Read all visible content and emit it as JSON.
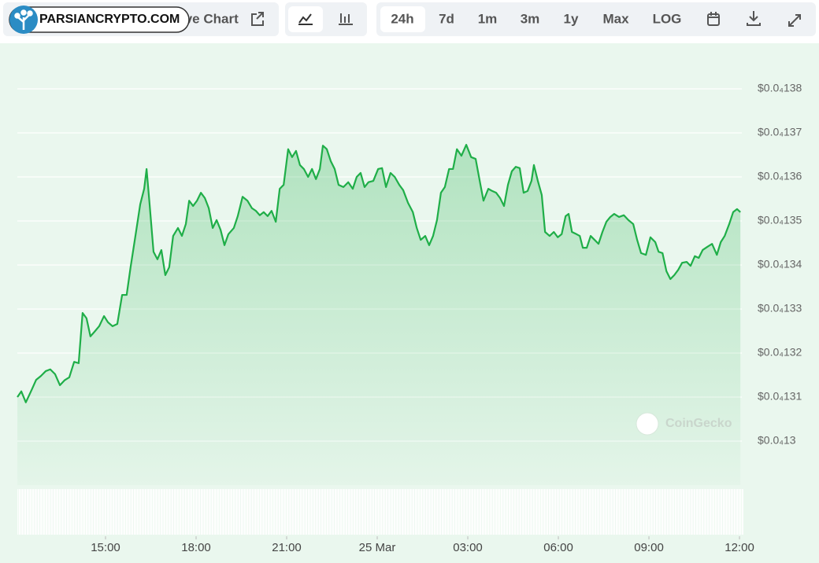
{
  "toolbar": {
    "brand": "PARSIANCRYPTO.COM",
    "live_chart": "ive Chart",
    "ranges": [
      "24h",
      "7d",
      "1m",
      "3m",
      "1y",
      "Max",
      "LOG"
    ]
  },
  "chart_data": {
    "type": "line",
    "watermark": "CoinGecko",
    "x": [
      12.08,
      12.21,
      12.36,
      12.55,
      12.7,
      12.86,
      13.02,
      13.17,
      13.33,
      13.49,
      13.64,
      13.8,
      13.96,
      14.11,
      14.24,
      14.37,
      14.5,
      14.63,
      14.79,
      14.95,
      15.08,
      15.23,
      15.39,
      15.55,
      15.7,
      15.83,
      15.99,
      16.15,
      16.28,
      16.36,
      16.46,
      16.59,
      16.72,
      16.85,
      16.98,
      17.11,
      17.24,
      17.4,
      17.53,
      17.66,
      17.77,
      17.9,
      18.03,
      18.16,
      18.29,
      18.42,
      18.55,
      18.68,
      18.81,
      18.94,
      19.07,
      19.25,
      19.38,
      19.54,
      19.7,
      19.85,
      19.98,
      20.11,
      20.24,
      20.37,
      20.5,
      20.64,
      20.77,
      20.9,
      21.05,
      21.18,
      21.31,
      21.44,
      21.57,
      21.71,
      21.84,
      21.97,
      22.1,
      22.2,
      22.33,
      22.46,
      22.59,
      22.72,
      22.88,
      23.04,
      23.19,
      23.32,
      23.45,
      23.58,
      23.71,
      23.87,
      24.03,
      24.16,
      24.29,
      24.44,
      24.58,
      24.73,
      24.86,
      25.02,
      25.18,
      25.31,
      25.44,
      25.59,
      25.72,
      25.85,
      25.98,
      26.11,
      26.24,
      26.38,
      26.51,
      26.64,
      26.79,
      26.95,
      27.11,
      27.26,
      27.42,
      27.52,
      27.68,
      27.81,
      27.94,
      28.07,
      28.2,
      28.33,
      28.46,
      28.59,
      28.72,
      28.85,
      28.98,
      29.11,
      29.19,
      29.32,
      29.45,
      29.56,
      29.71,
      29.85,
      29.98,
      30.11,
      30.24,
      30.34,
      30.45,
      30.6,
      30.71,
      30.81,
      30.94,
      31.07,
      31.2,
      31.33,
      31.46,
      31.59,
      31.72,
      31.85,
      32.01,
      32.17,
      32.32,
      32.48,
      32.61,
      32.74,
      32.9,
      33.05,
      33.21,
      33.32,
      33.45,
      33.58,
      33.71,
      33.84,
      33.97,
      34.1,
      34.25,
      34.38,
      34.52,
      34.65,
      34.78,
      34.93,
      35.09,
      35.25,
      35.38,
      35.51,
      35.66,
      35.79,
      35.92,
      36.03
    ],
    "series": [
      {
        "color": "#1fae48",
        "values": [
          1.31e-05,
          1.3113e-05,
          1.3088e-05,
          1.3116e-05,
          1.3139e-05,
          1.3148e-05,
          1.3159e-05,
          1.3163e-05,
          1.3152e-05,
          1.3127e-05,
          1.3138e-05,
          1.3145e-05,
          1.318e-05,
          1.3177e-05,
          1.3291e-05,
          1.3279e-05,
          1.3238e-05,
          1.3248e-05,
          1.3261e-05,
          1.3284e-05,
          1.327e-05,
          1.3261e-05,
          1.3266e-05,
          1.3332e-05,
          1.3332e-05,
          1.3395e-05,
          1.3466e-05,
          1.3538e-05,
          1.3573e-05,
          1.3618e-05,
          1.3538e-05,
          1.343e-05,
          1.3413e-05,
          1.3434e-05,
          1.3377e-05,
          1.3395e-05,
          1.3466e-05,
          1.3484e-05,
          1.3466e-05,
          1.3493e-05,
          1.3546e-05,
          1.3534e-05,
          1.3546e-05,
          1.3564e-05,
          1.3552e-05,
          1.3529e-05,
          1.3484e-05,
          1.3502e-05,
          1.348e-05,
          1.3445e-05,
          1.347e-05,
          1.3484e-05,
          1.3511e-05,
          1.3555e-05,
          1.3546e-05,
          1.3529e-05,
          1.3523e-05,
          1.3513e-05,
          1.352e-05,
          1.3511e-05,
          1.3523e-05,
          1.3498e-05,
          1.3573e-05,
          1.3582e-05,
          1.3663e-05,
          1.3645e-05,
          1.3659e-05,
          1.3627e-05,
          1.3618e-05,
          1.36e-05,
          1.3618e-05,
          1.3595e-05,
          1.3618e-05,
          1.3671e-05,
          1.3663e-05,
          1.3636e-05,
          1.3618e-05,
          1.3582e-05,
          1.3577e-05,
          1.3588e-05,
          1.3573e-05,
          1.36e-05,
          1.3609e-05,
          1.3577e-05,
          1.3588e-05,
          1.3591e-05,
          1.3618e-05,
          1.362e-05,
          1.3577e-05,
          1.3609e-05,
          1.36e-05,
          1.3582e-05,
          1.357e-05,
          1.3541e-05,
          1.352e-05,
          1.3484e-05,
          1.3457e-05,
          1.3466e-05,
          1.3445e-05,
          1.3466e-05,
          1.3502e-05,
          1.3564e-05,
          1.3577e-05,
          1.3618e-05,
          1.3618e-05,
          1.3663e-05,
          1.3648e-05,
          1.3673e-05,
          1.3645e-05,
          1.3641e-05,
          1.3582e-05,
          1.3546e-05,
          1.3573e-05,
          1.3568e-05,
          1.3564e-05,
          1.3552e-05,
          1.3534e-05,
          1.3582e-05,
          1.3613e-05,
          1.3623e-05,
          1.362e-05,
          1.3564e-05,
          1.3568e-05,
          1.3591e-05,
          1.3627e-05,
          1.3591e-05,
          1.3559e-05,
          1.3475e-05,
          1.3466e-05,
          1.3475e-05,
          1.3463e-05,
          1.347e-05,
          1.3511e-05,
          1.3516e-05,
          1.3475e-05,
          1.347e-05,
          1.3466e-05,
          1.3439e-05,
          1.3439e-05,
          1.3466e-05,
          1.3457e-05,
          1.3448e-05,
          1.3475e-05,
          1.3498e-05,
          1.3509e-05,
          1.3516e-05,
          1.3509e-05,
          1.3513e-05,
          1.3502e-05,
          1.3493e-05,
          1.3457e-05,
          1.3427e-05,
          1.3423e-05,
          1.3463e-05,
          1.3452e-05,
          1.343e-05,
          1.3427e-05,
          1.3386e-05,
          1.3368e-05,
          1.3377e-05,
          1.3389e-05,
          1.3405e-05,
          1.3407e-05,
          1.3398e-05,
          1.342e-05,
          1.3416e-05,
          1.3434e-05,
          1.3441e-05,
          1.3448e-05,
          1.3423e-05,
          1.3452e-05,
          1.3466e-05,
          1.3493e-05,
          1.352e-05,
          1.3527e-05,
          1.352e-05
        ]
      }
    ],
    "xlim": [
      12,
      36.2
    ],
    "xticks": [
      {
        "value": 15,
        "label": "15:00"
      },
      {
        "value": 18,
        "label": "18:00"
      },
      {
        "value": 21,
        "label": "21:00"
      },
      {
        "value": 24,
        "label": "25 Mar"
      },
      {
        "value": 27,
        "label": "03:00"
      },
      {
        "value": 30,
        "label": "06:00"
      },
      {
        "value": 33,
        "label": "09:00"
      },
      {
        "value": 36,
        "label": "12:00"
      }
    ],
    "ylim": [
      1.29e-05,
      1.39e-05
    ],
    "yticks": [
      {
        "value": 1.3e-05,
        "label": "$0.0₄13"
      },
      {
        "value": 1.31e-05,
        "label": "$0.0₄131"
      },
      {
        "value": 1.32e-05,
        "label": "$0.0₄132"
      },
      {
        "value": 1.33e-05,
        "label": "$0.0₄133"
      },
      {
        "value": 1.34e-05,
        "label": "$0.0₄134"
      },
      {
        "value": 1.35e-05,
        "label": "$0.0₄135"
      },
      {
        "value": 1.36e-05,
        "label": "$0.0₄136"
      },
      {
        "value": 1.37e-05,
        "label": "$0.0₄137"
      },
      {
        "value": 1.38e-05,
        "label": "$0.0₄138"
      }
    ],
    "grid": true
  }
}
